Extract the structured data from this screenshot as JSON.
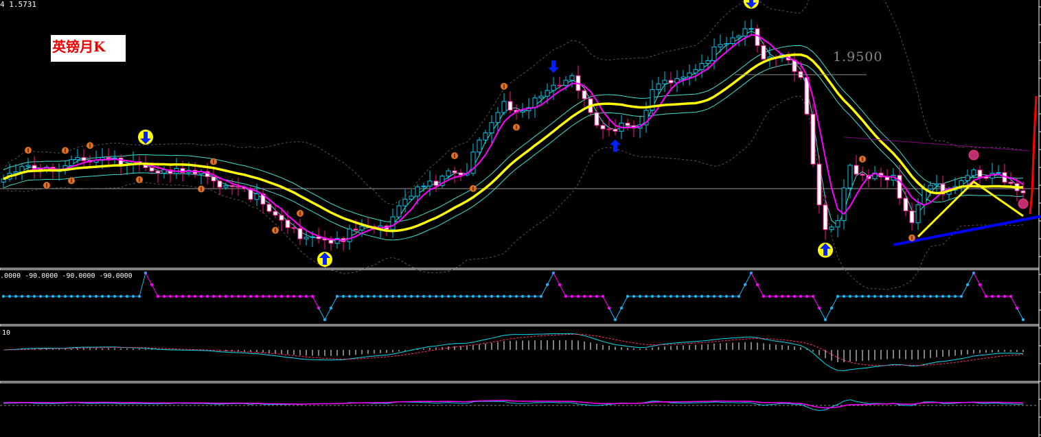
{
  "header": {
    "ohlc_text": "4 1.5731"
  },
  "title_label": "英镑月K",
  "level_label": "1.9500",
  "subwindows": {
    "oscillator_label": ".0000 -90.0000 -90.0000 -90.0000",
    "macd_label": "10"
  },
  "colors": {
    "background": "#000000",
    "bull": "#00c8f0",
    "bear": "#ff1493",
    "ma_slow": "#ffff00",
    "ma_fast": "#ff00ff",
    "bands": "#40e0d0",
    "trendline": "#0000ff",
    "zigzag": "#ffff00",
    "red_line": "#ff0000",
    "marker": "#e07020"
  },
  "chart_data": {
    "type": "candlestick",
    "ylim": [
      1.312,
      2.197
    ],
    "current_price": 1.5731,
    "level": 1.95,
    "price_path": [
      [
        0,
        1.5845
      ],
      [
        4,
        1.6526
      ],
      [
        11,
        1.6526
      ],
      [
        22,
        1.6753
      ],
      [
        27,
        1.6185
      ],
      [
        33,
        1.6072
      ],
      [
        38,
        1.5958
      ],
      [
        42,
        1.5164
      ],
      [
        45,
        1.4483
      ],
      [
        49,
        1.4256
      ],
      [
        53,
        1.4142
      ],
      [
        57,
        1.4256
      ],
      [
        62,
        1.4369
      ],
      [
        64,
        1.539
      ],
      [
        68,
        1.5958
      ],
      [
        75,
        1.6185
      ],
      [
        77,
        1.7207
      ],
      [
        81,
        1.8682
      ],
      [
        84,
        1.8342
      ],
      [
        88,
        1.8796
      ],
      [
        92,
        1.925
      ],
      [
        94,
        1.8796
      ],
      [
        96,
        1.8001
      ],
      [
        99,
        1.7661
      ],
      [
        103,
        1.7661
      ],
      [
        105,
        1.8796
      ],
      [
        109,
        1.9477
      ],
      [
        114,
        2.0158
      ],
      [
        117,
        2.0385
      ],
      [
        121,
        2.0952
      ],
      [
        122,
        2.0271
      ],
      [
        127,
        2.0158
      ],
      [
        129,
        1.9477
      ],
      [
        130,
        1.8115
      ],
      [
        131,
        1.6299
      ],
      [
        132,
        1.5164
      ],
      [
        133,
        1.4369
      ],
      [
        135,
        1.4483
      ],
      [
        137,
        1.6526
      ],
      [
        140,
        1.6299
      ],
      [
        144,
        1.6185
      ],
      [
        145,
        1.5164
      ],
      [
        147,
        1.4483
      ],
      [
        149,
        1.5617
      ],
      [
        153,
        1.5845
      ],
      [
        157,
        1.6412
      ],
      [
        160,
        1.6185
      ],
      [
        165,
        1.5504
      ]
    ],
    "signals": {
      "arrow_down": [
        23,
        121
      ],
      "arrow_up": [
        52,
        133
      ],
      "blue_down": [
        89
      ],
      "blue_up": [
        99
      ],
      "target": [
        157,
        165
      ],
      "alert_above": [
        4,
        10,
        14,
        34,
        48,
        73,
        81,
        139
      ],
      "alert_below": [
        7,
        11,
        22,
        32,
        44,
        76,
        83,
        147
      ]
    },
    "trendline": [
      [
        144,
        1.387
      ],
      [
        168,
        1.482
      ]
    ],
    "zigzag": [
      [
        148,
        1.4142
      ],
      [
        157,
        1.5958
      ],
      [
        165,
        1.4824
      ]
    ],
    "resistance": [
      [
        136,
        1.7434
      ],
      [
        166,
        1.698
      ]
    ],
    "oscillator_pivots": [
      [
        0,
        0
      ],
      [
        22,
        0
      ],
      [
        23,
        1
      ],
      [
        25,
        0
      ],
      [
        50,
        0
      ],
      [
        52,
        -1
      ],
      [
        54,
        0
      ],
      [
        87,
        0
      ],
      [
        89,
        1
      ],
      [
        91,
        0
      ],
      [
        97,
        0
      ],
      [
        99,
        -1
      ],
      [
        101,
        0
      ],
      [
        119,
        0
      ],
      [
        121,
        1
      ],
      [
        123,
        0
      ],
      [
        131,
        0
      ],
      [
        133,
        -1
      ],
      [
        135,
        0
      ],
      [
        155,
        0
      ],
      [
        157,
        1
      ],
      [
        159,
        0
      ],
      [
        163,
        0
      ],
      [
        165,
        -1
      ]
    ]
  }
}
